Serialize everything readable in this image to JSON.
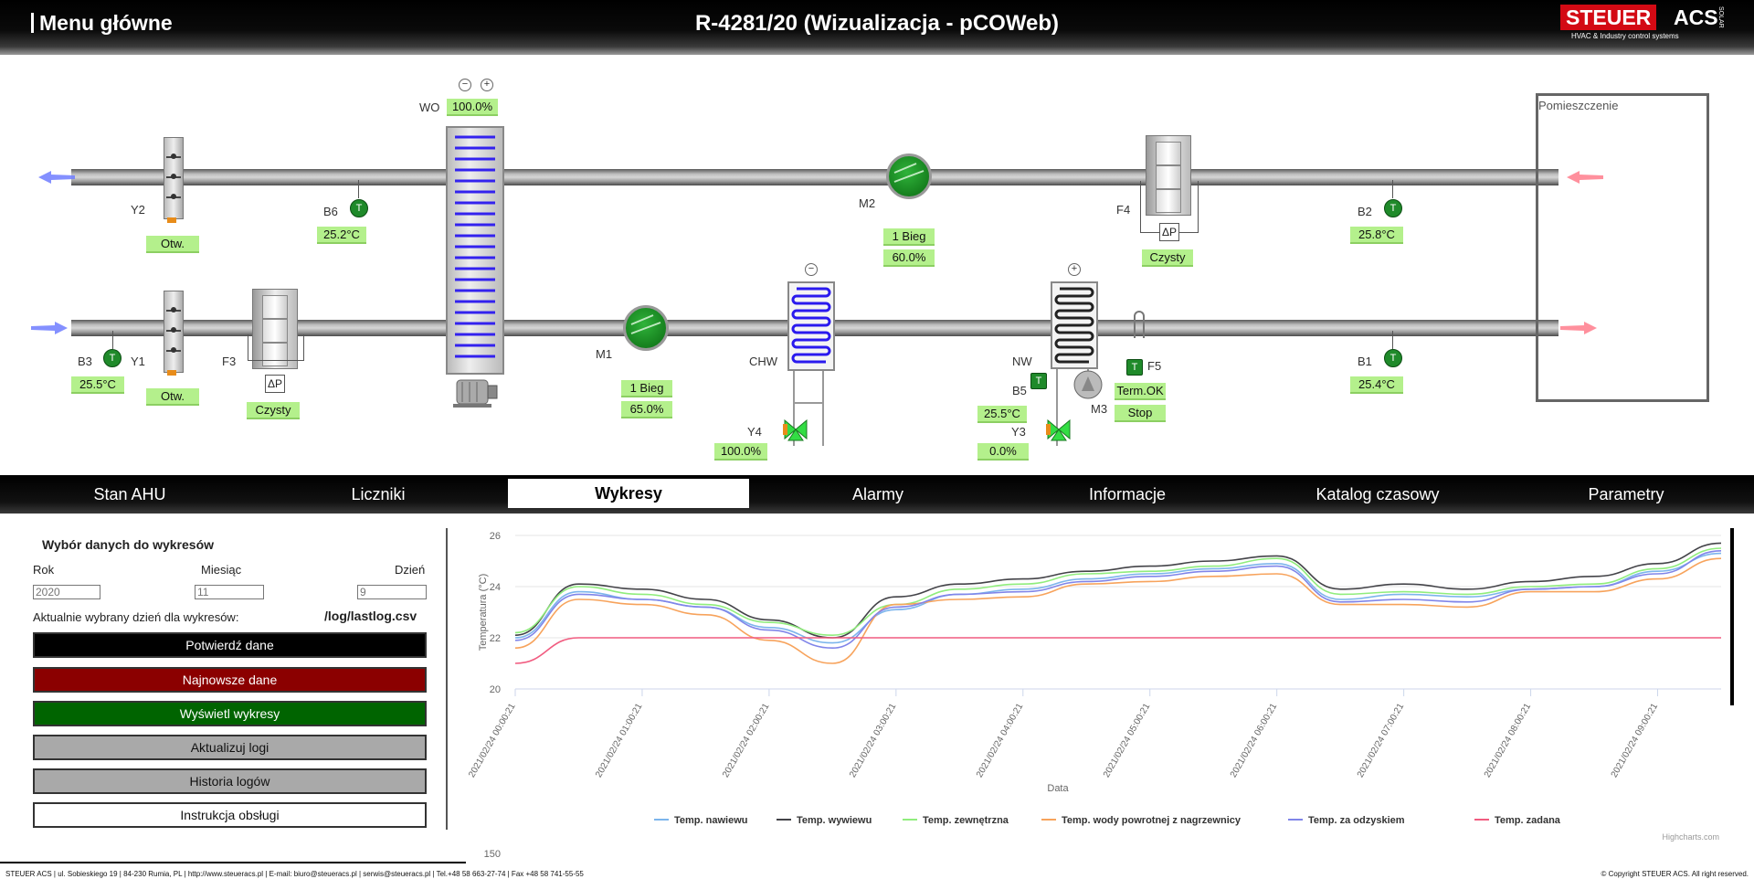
{
  "header": {
    "menu_label": "Menu główne",
    "title": "R-4281/20 (Wizualizacja - pCOWeb)",
    "logo": {
      "steuer": "STEUER",
      "acs": "ACS",
      "tagline": "HVAC & Industry  control systems",
      "side": "SOLAR"
    }
  },
  "schematic": {
    "room_label": "Pomieszczenie",
    "devices": {
      "Y2": {
        "label": "Y2",
        "value": "Otw."
      },
      "Y1": {
        "label": "Y1",
        "value": "Otw."
      },
      "B6": {
        "label": "B6",
        "value": "25.2",
        "unit": "°C",
        "sensor": "T"
      },
      "B3": {
        "label": "B3",
        "value": "25.5",
        "unit": "°C",
        "sensor": "T"
      },
      "F3": {
        "label": "F3",
        "value": "Czysty",
        "dp": "ΔP"
      },
      "WO": {
        "label": "WO",
        "value": "100.0%"
      },
      "M1": {
        "label": "M1",
        "line1": "1 Bieg",
        "line2": "65.0%"
      },
      "M2": {
        "label": "M2",
        "line1": "1 Bieg",
        "line2": "60.0%"
      },
      "CHW": {
        "label": "CHW"
      },
      "Y4": {
        "label": "Y4",
        "value": "100.0%"
      },
      "F4": {
        "label": "F4",
        "value": "Czysty",
        "dp": "ΔP"
      },
      "NW": {
        "label": "NW"
      },
      "B5": {
        "label": "B5",
        "value": "25.5",
        "unit": "°C",
        "sensor": "T"
      },
      "M3": {
        "label": "M3"
      },
      "Y3": {
        "label": "Y3",
        "value": "0.0%"
      },
      "F5": {
        "label": "F5",
        "line1": "Term.OK",
        "line2": "Stop",
        "sensor": "T"
      },
      "B2": {
        "label": "B2",
        "value": "25.8",
        "unit": "°C",
        "sensor": "T"
      },
      "B1": {
        "label": "B1",
        "value": "25.4",
        "unit": "°C",
        "sensor": "T"
      }
    }
  },
  "tabs": [
    {
      "label": "Stan AHU",
      "active": false
    },
    {
      "label": "Liczniki",
      "active": false
    },
    {
      "label": "Wykresy",
      "active": true
    },
    {
      "label": "Alarmy",
      "active": false
    },
    {
      "label": "Informacje",
      "active": false
    },
    {
      "label": "Katalog czasowy",
      "active": false
    },
    {
      "label": "Parametry",
      "active": false
    }
  ],
  "left_panel": {
    "title": "Wybór danych do wykresów",
    "fields": {
      "year": {
        "label": "Rok",
        "placeholder": "2020"
      },
      "month": {
        "label": "Miesiąc",
        "placeholder": "11"
      },
      "day": {
        "label": "Dzień",
        "placeholder": "9"
      }
    },
    "current_label": "Aktualnie wybrany dzień dla wykresów:",
    "current_file": "/log/lastlog.csv",
    "buttons": {
      "confirm": "Potwierdź dane",
      "newest": "Najnowsze dane",
      "show": "Wyświetl wykresy",
      "update": "Aktualizuj logi",
      "history": "Historia logów",
      "manual": "Instrukcja obsługi"
    },
    "colors": {
      "confirm": "#000000",
      "newest": "#8b0000",
      "show": "#006400",
      "gray": "#a9a9a9",
      "white": "#ffffff"
    }
  },
  "chart_data": {
    "type": "line",
    "ylabel": "Temperatura (°C)",
    "xlabel": "Data",
    "ylim": [
      20,
      26
    ],
    "yticks": [
      20,
      22,
      24,
      26
    ],
    "x": [
      0,
      0.5,
      1,
      1.5,
      2,
      2.5,
      3,
      3.5,
      4,
      4.5,
      5,
      5.5,
      6,
      6.5,
      7,
      7.5,
      8,
      8.5,
      9,
      9.5
    ],
    "x_units": "hours after 2021/02/24 00:00:21",
    "xticks": [
      "2021/02/24 00:00:21",
      "2021/02/24 01:00:21",
      "2021/02/24 02:00:21",
      "2021/02/24 03:00:21",
      "2021/02/24 04:00:21",
      "2021/02/24 05:00:21",
      "2021/02/24 06:00:21",
      "2021/02/24 07:00:21",
      "2021/02/24 08:00:21",
      "2021/02/24 09:00:21"
    ],
    "grid": true,
    "legend_position": "bottom",
    "credits": "Highcharts.com",
    "next_chart_tick": "150",
    "series": [
      {
        "name": "Temp. nawiewu",
        "color": "#7cb5ec",
        "values": [
          22.0,
          23.8,
          23.5,
          23.2,
          22.4,
          21.8,
          23.1,
          23.7,
          23.9,
          24.3,
          24.5,
          24.7,
          24.9,
          23.5,
          23.7,
          23.6,
          23.9,
          24.0,
          24.6,
          25.3
        ]
      },
      {
        "name": "Temp. wywiewu",
        "color": "#434348",
        "values": [
          22.1,
          24.1,
          23.9,
          23.5,
          22.7,
          22.0,
          23.6,
          24.1,
          24.3,
          24.6,
          24.8,
          25.0,
          25.2,
          23.9,
          24.1,
          23.9,
          24.2,
          24.4,
          24.9,
          25.7
        ]
      },
      {
        "name": "Temp. zewnętrzna",
        "color": "#90ed7d",
        "values": [
          22.2,
          24.0,
          23.7,
          23.3,
          22.6,
          22.1,
          23.3,
          23.9,
          24.1,
          24.5,
          24.6,
          24.8,
          25.1,
          23.7,
          23.8,
          23.7,
          24.0,
          24.1,
          24.7,
          25.5
        ]
      },
      {
        "name": "Temp. wody powrotnej z nagrzewnicy",
        "color": "#f7a35c",
        "values": [
          21.6,
          23.5,
          23.3,
          22.9,
          21.9,
          21.0,
          23.3,
          23.5,
          23.6,
          24.1,
          24.2,
          24.4,
          24.5,
          23.3,
          23.3,
          23.2,
          23.8,
          23.8,
          24.3,
          25.1
        ]
      },
      {
        "name": "Temp. za odzyskiem",
        "color": "#8085e9",
        "values": [
          21.9,
          23.7,
          23.5,
          23.2,
          22.3,
          21.6,
          23.2,
          23.7,
          23.8,
          24.2,
          24.4,
          24.6,
          24.8,
          23.4,
          23.5,
          23.4,
          23.9,
          24.0,
          24.5,
          25.4
        ]
      },
      {
        "name": "Temp. zadana",
        "color": "#f15c80",
        "values": [
          21.0,
          22.0,
          22.0,
          22.0,
          22.0,
          22.0,
          22.0,
          22.0,
          22.0,
          22.0,
          22.0,
          22.0,
          22.0,
          22.0,
          22.0,
          22.0,
          22.0,
          22.0,
          22.0,
          22.0
        ]
      }
    ]
  },
  "footer": {
    "left": "STEUER ACS  |  ul. Sobieskiego 19  |  84-230 Rumia, PL  |  http://www.steueracs.pl  |  E-mail: biuro@steueracs.pl  |  serwis@steueracs.pl  |  Tel.+48 58 663-27-74  |  Fax +48 58 741-55-55",
    "right": "© Copyright STEUER ACS. All right reserved."
  }
}
